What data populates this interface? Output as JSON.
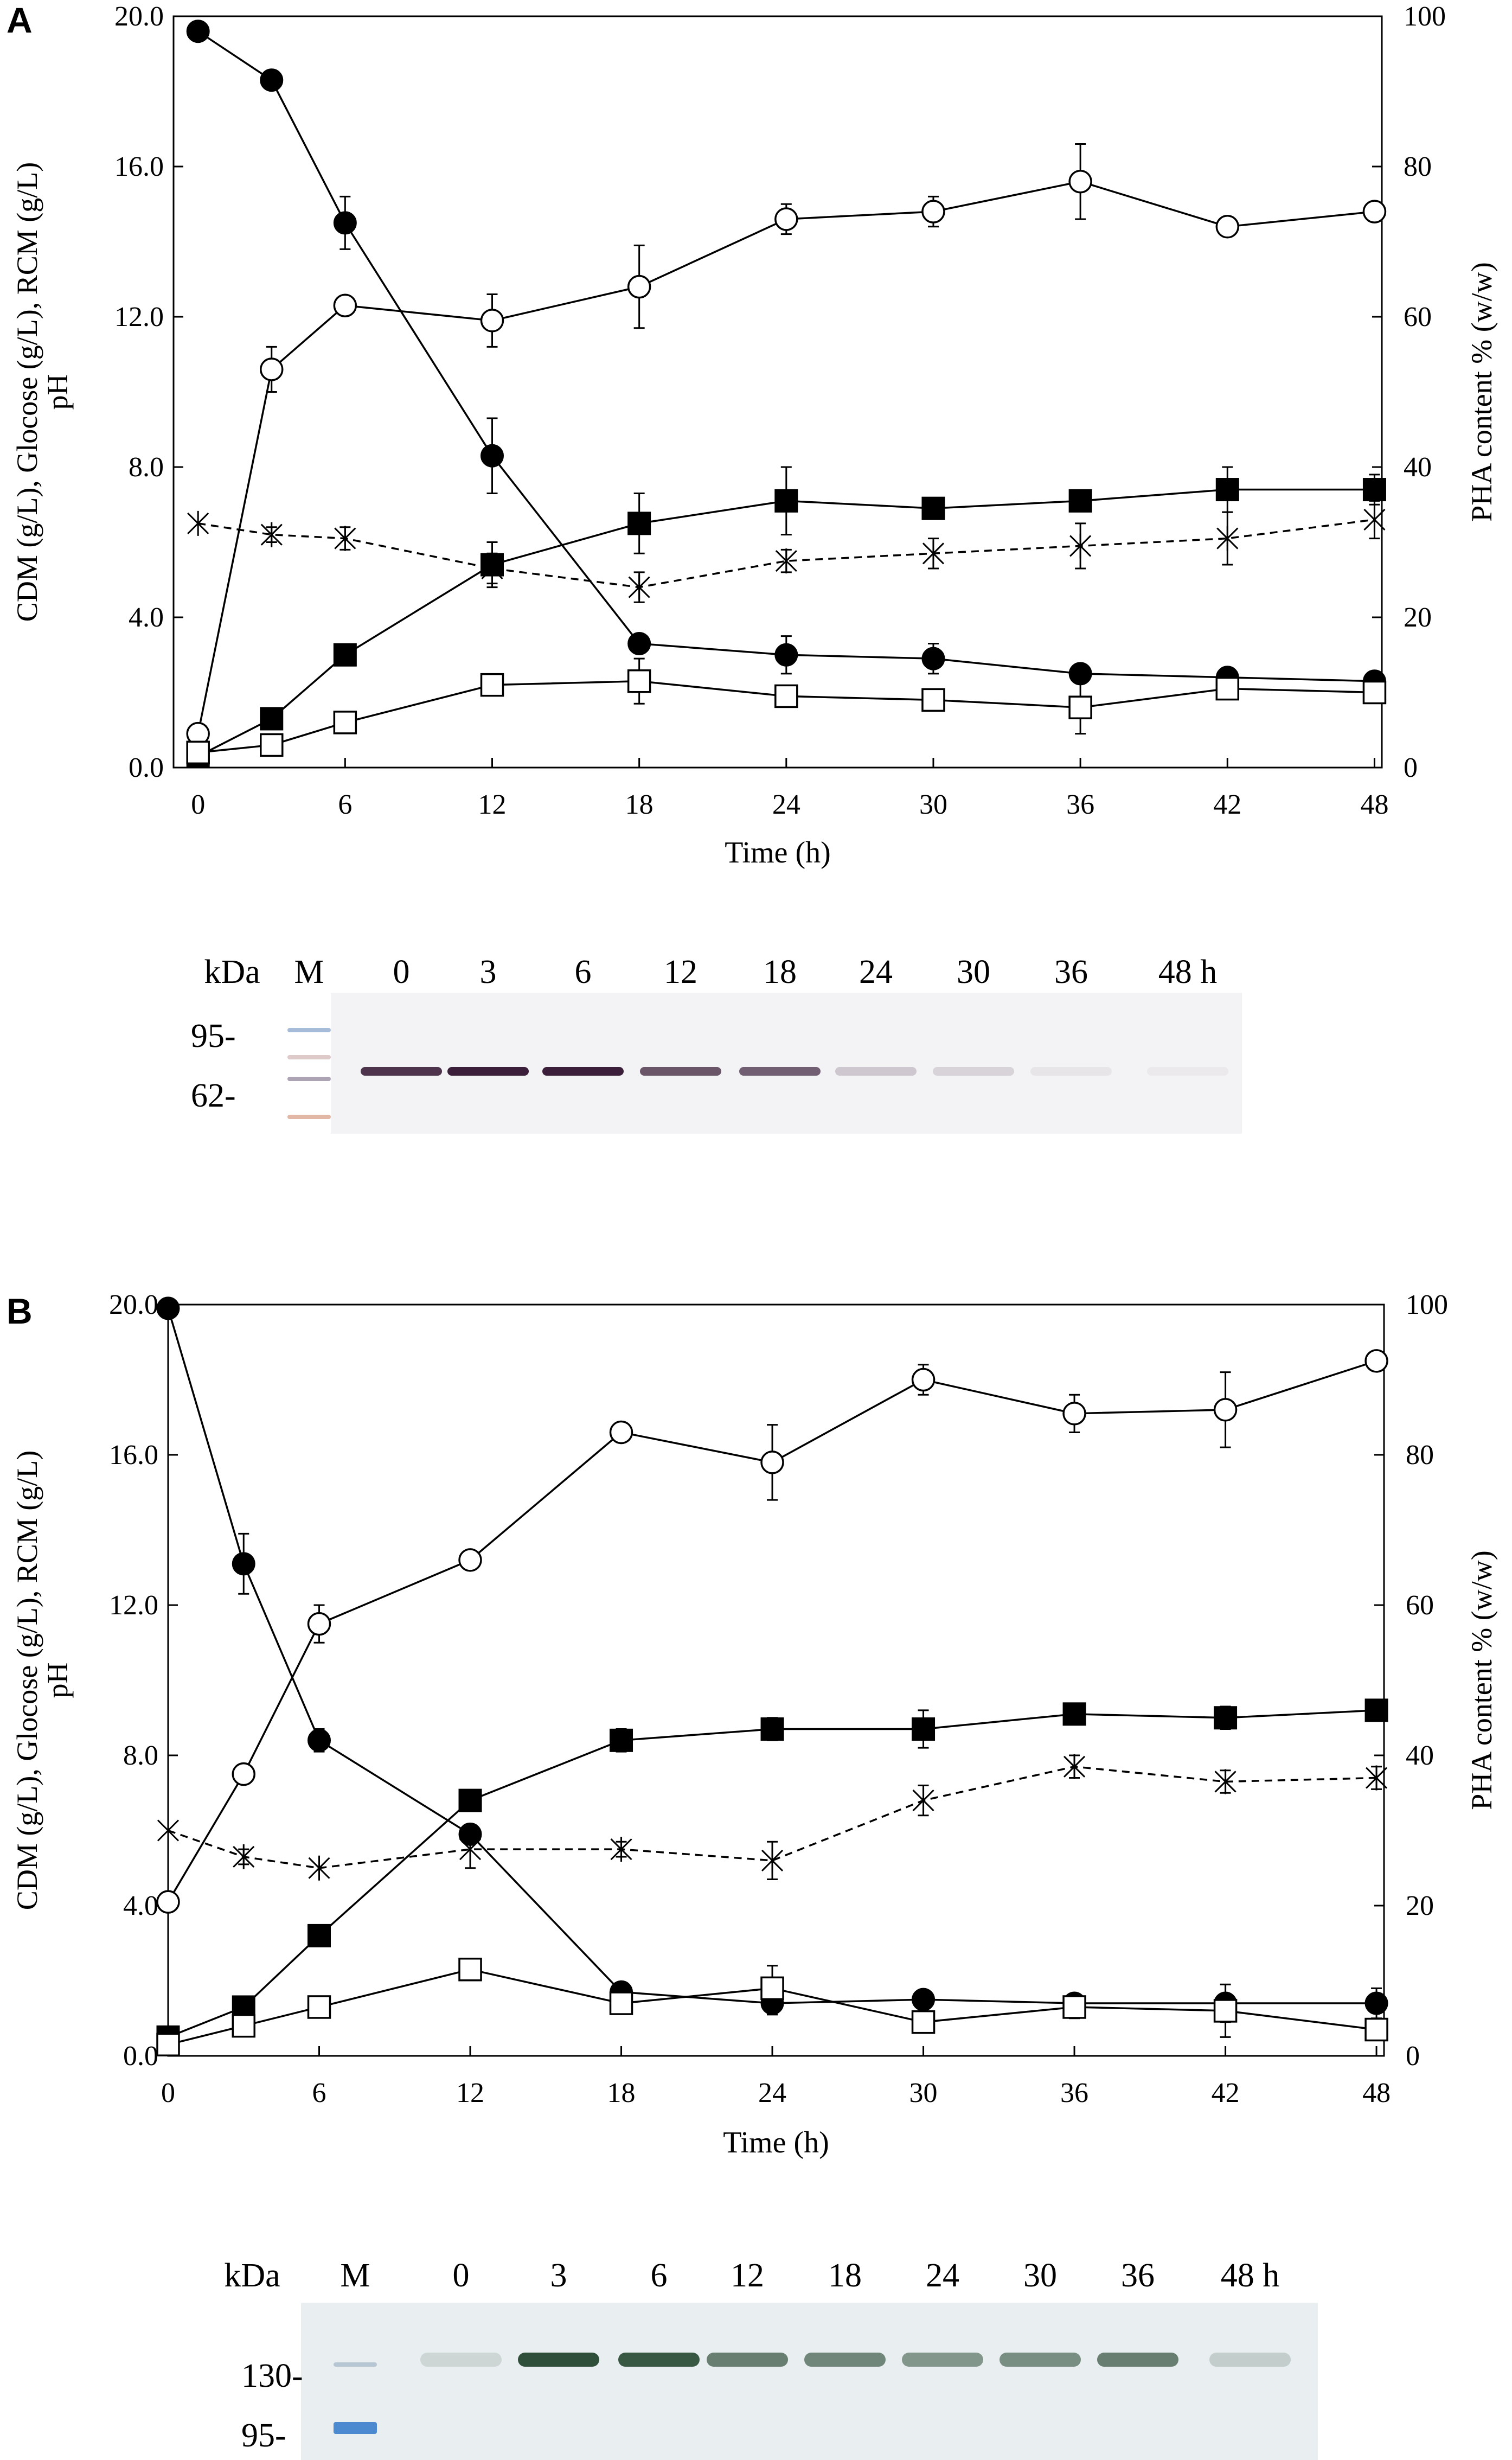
{
  "panels": [
    {
      "label": "A",
      "chart_data": {
        "type": "line",
        "xlabel": "Time (h)",
        "ylabel_left_lines": [
          "CDM (g/L), Glocose (g/L), RCM (g/L)",
          "pH"
        ],
        "ylabel_right": "PHA content % (w/w)",
        "x_ticks": [
          0,
          6,
          12,
          18,
          24,
          30,
          36,
          42,
          48
        ],
        "x_range": [
          -1,
          48.3
        ],
        "y_left_range": [
          0,
          20
        ],
        "y_left_ticks": [
          "0.0",
          "4.0",
          "8.0",
          "12.0",
          "16.0",
          "20.0"
        ],
        "y_right_range": [
          0,
          100
        ],
        "y_right_ticks": [
          "0",
          "20",
          "40",
          "60",
          "80",
          "100"
        ],
        "series": [
          {
            "name": "filled-circle",
            "marker": "filled-circle",
            "line": "solid",
            "x": [
              0,
              3,
              6,
              12,
              18,
              24,
              30,
              36,
              42,
              48
            ],
            "y": [
              19.6,
              18.3,
              14.5,
              8.3,
              3.3,
              3.0,
              2.9,
              2.5,
              2.4,
              2.3
            ],
            "err": [
              0,
              0.2,
              0.7,
              1.0,
              0,
              0.5,
              0.4,
              0,
              0,
              0
            ]
          },
          {
            "name": "open-circle",
            "marker": "open-circle",
            "line": "solid",
            "x": [
              0,
              3,
              6,
              12,
              18,
              24,
              30,
              36,
              42,
              48
            ],
            "y": [
              0.9,
              10.6,
              12.3,
              11.9,
              12.8,
              14.6,
              14.8,
              15.6,
              14.4,
              14.8
            ],
            "err": [
              0,
              0.6,
              0,
              0.7,
              1.1,
              0.4,
              0.4,
              1.0,
              0,
              0
            ]
          },
          {
            "name": "filled-square",
            "marker": "filled-square",
            "line": "solid",
            "x": [
              0,
              3,
              6,
              12,
              18,
              24,
              30,
              36,
              42,
              48
            ],
            "y": [
              0.3,
              1.3,
              3.0,
              5.4,
              6.5,
              7.1,
              6.9,
              7.1,
              7.4,
              7.4
            ],
            "err": [
              0,
              0,
              0,
              0.6,
              0.8,
              0.9,
              0,
              0,
              0.6,
              0.4
            ]
          },
          {
            "name": "open-square",
            "marker": "open-square",
            "line": "solid",
            "x": [
              0,
              3,
              6,
              12,
              18,
              24,
              30,
              36,
              42,
              48
            ],
            "y": [
              0.4,
              0.6,
              1.2,
              2.2,
              2.3,
              1.9,
              1.8,
              1.6,
              2.1,
              2.0
            ],
            "err": [
              0,
              0,
              0,
              0,
              0.6,
              0,
              0,
              0.7,
              0,
              0
            ]
          },
          {
            "name": "star",
            "marker": "star",
            "line": "dashed",
            "x": [
              0,
              3,
              6,
              12,
              18,
              24,
              30,
              36,
              42,
              48
            ],
            "y": [
              6.5,
              6.2,
              6.1,
              5.3,
              4.8,
              5.5,
              5.7,
              5.9,
              6.1,
              6.6
            ],
            "err": [
              0,
              0.2,
              0.3,
              0.4,
              0.4,
              0.3,
              0.4,
              0.6,
              0.7,
              0.5
            ]
          }
        ]
      },
      "gel": {
        "header_unit": "kDa",
        "header_marker": "M",
        "lanes": [
          "0",
          "3",
          "6",
          "12",
          "18",
          "24",
          "30",
          "36",
          "48 h"
        ],
        "mw_labels": [
          "95-",
          "62-"
        ],
        "band_color": "#3b1f3a",
        "band_intensity": [
          0.9,
          1.0,
          1.0,
          0.75,
          0.7,
          0.2,
          0.15,
          0.06,
          0.04
        ]
      }
    },
    {
      "label": "B",
      "chart_data": {
        "type": "line",
        "xlabel": "Time (h)",
        "ylabel_left_lines": [
          "CDM (g/L),  Glocose (g/L),  RCM (g/L)",
          "pH"
        ],
        "ylabel_right": "PHA content % (w/w)",
        "x_ticks": [
          0,
          6,
          12,
          18,
          24,
          30,
          36,
          42,
          48
        ],
        "x_range": [
          0,
          48.3
        ],
        "y_left_range": [
          0,
          20
        ],
        "y_left_ticks": [
          "0.0",
          "4.0",
          "8.0",
          "12.0",
          "16.0",
          "20.0"
        ],
        "y_right_range": [
          0,
          100
        ],
        "y_right_ticks": [
          "0",
          "20",
          "40",
          "60",
          "80",
          "100"
        ],
        "series": [
          {
            "name": "filled-circle",
            "marker": "filled-circle",
            "line": "solid",
            "x": [
              0,
              3,
              6,
              12,
              18,
              24,
              30,
              36,
              42,
              48
            ],
            "y": [
              19.9,
              13.1,
              8.4,
              5.9,
              1.7,
              1.4,
              1.5,
              1.4,
              1.4,
              1.4
            ],
            "err": [
              0,
              0.8,
              0.3,
              0,
              0,
              0.3,
              0,
              0,
              0.5,
              0.4
            ]
          },
          {
            "name": "open-circle",
            "marker": "open-circle",
            "line": "solid",
            "x": [
              0,
              3,
              6,
              12,
              18,
              24,
              30,
              36,
              42,
              48
            ],
            "y": [
              4.1,
              7.5,
              11.5,
              13.2,
              16.6,
              15.8,
              18.0,
              17.1,
              17.2,
              18.5
            ],
            "err": [
              0,
              0,
              0.5,
              0,
              0,
              1.0,
              0.4,
              0.5,
              1.0,
              0
            ]
          },
          {
            "name": "filled-square",
            "marker": "filled-square",
            "line": "solid",
            "x": [
              0,
              3,
              6,
              12,
              18,
              24,
              30,
              36,
              42,
              48
            ],
            "y": [
              0.5,
              1.3,
              3.2,
              6.8,
              8.4,
              8.7,
              8.7,
              9.1,
              9.0,
              9.2
            ],
            "err": [
              0,
              0,
              0,
              0,
              0.3,
              0.3,
              0.5,
              0,
              0.3,
              0
            ]
          },
          {
            "name": "open-square",
            "marker": "open-square",
            "line": "solid",
            "x": [
              0,
              3,
              6,
              12,
              18,
              24,
              30,
              36,
              42,
              48
            ],
            "y": [
              0.3,
              0.8,
              1.3,
              2.3,
              1.4,
              1.8,
              0.9,
              1.3,
              1.2,
              0.7
            ],
            "err": [
              0,
              0,
              0,
              0,
              0,
              0.6,
              0,
              0.3,
              0.7,
              0
            ]
          },
          {
            "name": "star",
            "marker": "star",
            "line": "dashed",
            "x": [
              0,
              3,
              6,
              12,
              18,
              24,
              30,
              36,
              42,
              48
            ],
            "y": [
              6.0,
              5.3,
              5.0,
              5.5,
              5.5,
              5.2,
              6.8,
              7.7,
              7.3,
              7.4
            ],
            "err": [
              0,
              0.2,
              0,
              0.5,
              0.2,
              0.5,
              0.4,
              0.3,
              0.3,
              0.3
            ]
          }
        ]
      },
      "gel": {
        "header_unit": "kDa",
        "header_marker": "M",
        "lanes": [
          "0",
          "3",
          "6",
          "12",
          "18",
          "24",
          "30",
          "36",
          "48 h"
        ],
        "mw_labels": [
          "130-",
          "95-"
        ],
        "band_color": "#2f4f3a",
        "band_intensity": [
          0.15,
          1.0,
          0.95,
          0.7,
          0.65,
          0.55,
          0.6,
          0.7,
          0.2
        ]
      }
    }
  ]
}
